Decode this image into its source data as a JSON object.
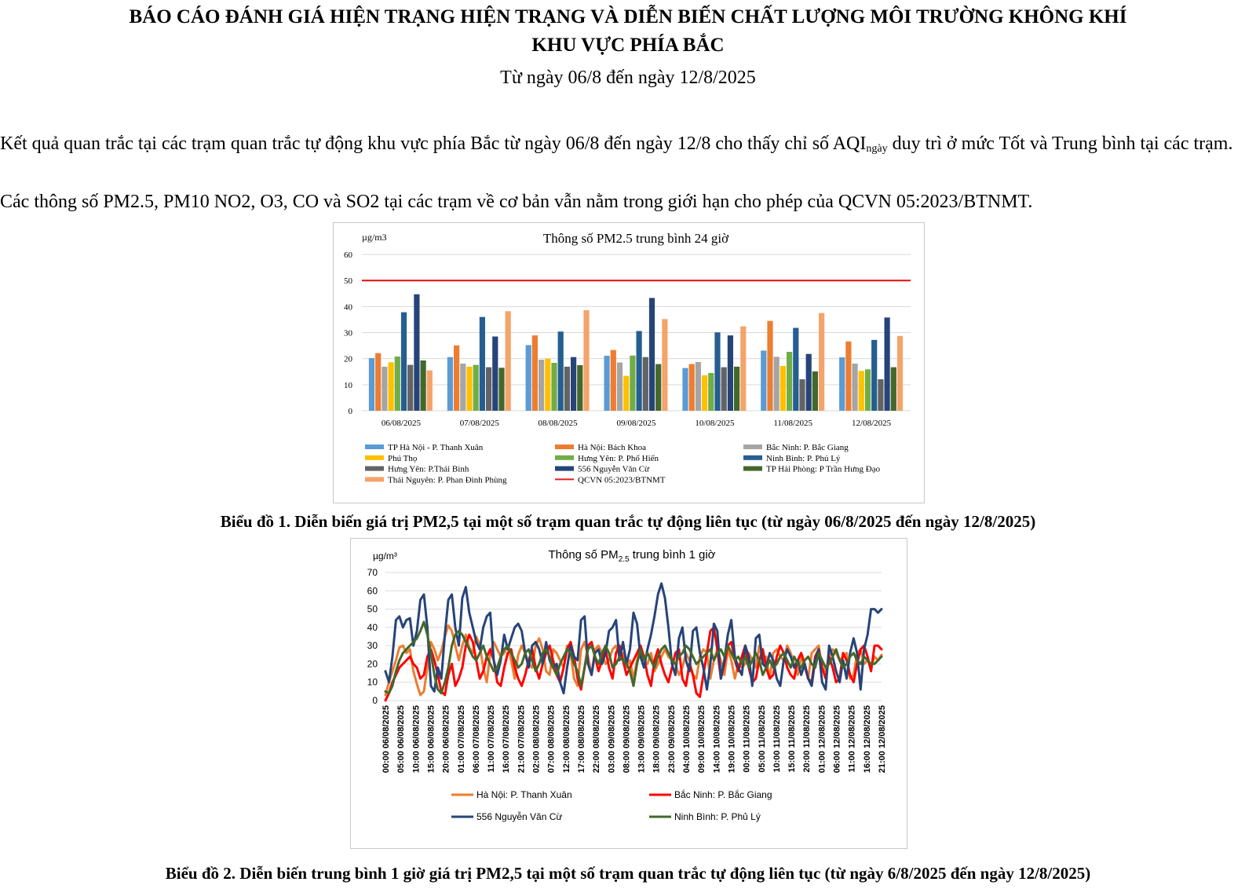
{
  "report": {
    "title_line1": "BÁO CÁO ĐÁNH GIÁ HIỆN TRẠNG HIỆN TRẠNG VÀ DIỄN BIẾN CHẤT LƯỢNG MÔI TRƯỜNG KHÔNG KHÍ",
    "title_line2": "KHU VỰC PHÍA BẮC",
    "date_range": "Từ ngày 06/8 đến ngày 12/8/2025",
    "para1_a": "Kết quả quan trắc tại các trạm quan trắc tự động khu vực phía Bắc từ ngày 06/8 đến ngày 12/8 cho thấy chỉ số AQI",
    "para1_sub": "ngày",
    "para1_b": " duy trì ở mức Tốt và Trung bình tại các trạm.",
    "para2": "Các thông số PM2.5, PM10  NO2, O3, CO và SO2 tại các trạm về cơ bản vẫn nằm trong giới hạn cho phép của QCVN 05:2023/BTNMT.",
    "caption1": "Biểu đồ 1. Diễn biến giá trị PM2,5 tại một số trạm quan trắc tự động liên tục (từ ngày 06/8/2025 đến ngày 12/8/2025)",
    "caption2": "Biểu đồ 2. Diễn biến trung bình 1 giờ giá trị PM2,5 tại một số trạm quan trắc tự động liên tục (từ ngày 6/8/2025 đến ngày 12/8/2025)"
  },
  "chart_data": [
    {
      "type": "bar",
      "title": "Thông số PM2.5 trung bình 24 giờ",
      "ylabel": "µg/m3",
      "ylim": [
        0,
        60
      ],
      "yticks": [
        0,
        10,
        20,
        30,
        40,
        50,
        60
      ],
      "categories": [
        "06/08/2025",
        "07/08/2025",
        "08/08/2025",
        "09/08/2025",
        "10/08/2025",
        "11/08/2025",
        "12/08/2025"
      ],
      "series": [
        {
          "name": "TP Hà Nội - P. Thanh Xuân",
          "color": "#5b9bd5",
          "values": [
            20.2,
            20.6,
            25.2,
            21.1,
            16.4,
            23.1,
            20.5
          ]
        },
        {
          "name": "Hà Nội: Bách Khoa",
          "color": "#ed7d31",
          "values": [
            22.1,
            25.1,
            28.9,
            23.3,
            17.9,
            34.5,
            26.6
          ]
        },
        {
          "name": "Bắc Ninh: P. Bắc Giang",
          "color": "#a5a5a5",
          "values": [
            16.9,
            18.1,
            19.6,
            18.5,
            18.7,
            20.7,
            18.1
          ]
        },
        {
          "name": "Phú Thọ",
          "color": "#ffc000",
          "values": [
            18.6,
            16.9,
            20.0,
            13.4,
            13.6,
            17.2,
            15.3
          ]
        },
        {
          "name": "Hưng Yên: P. Phố Hiến",
          "color": "#70ad47",
          "values": [
            20.8,
            17.6,
            18.4,
            21.2,
            14.5,
            22.6,
            15.9
          ]
        },
        {
          "name": "Ninh Bình: P. Phủ Lý",
          "color": "#255e91",
          "values": [
            37.8,
            36.0,
            30.4,
            30.6,
            30.1,
            31.8,
            27.2
          ]
        },
        {
          "name": "Hưng Yên: P.Thái Bình",
          "color": "#636363",
          "values": [
            17.6,
            16.7,
            16.9,
            20.6,
            16.7,
            12.1,
            12.1
          ]
        },
        {
          "name": "556 Nguyễn Văn Cừ",
          "color": "#264478",
          "values": [
            44.7,
            28.5,
            20.6,
            43.3,
            28.9,
            21.8,
            35.8
          ]
        },
        {
          "name": "TP Hải Phòng: P Trần Hưng Đạo",
          "color": "#43682b",
          "values": [
            19.3,
            16.5,
            17.5,
            17.9,
            16.9,
            15.1,
            16.7
          ]
        },
        {
          "name": "Thái Nguyên: P. Phan Đình Phùng",
          "color": "#f4a46a",
          "values": [
            15.5,
            38.2,
            38.6,
            35.2,
            32.4,
            37.5,
            28.7
          ]
        }
      ],
      "reference_line": {
        "name": "QCVN 05:2023/BTNMT",
        "value": 50,
        "color": "#e31a1c"
      }
    },
    {
      "type": "line",
      "title_prefix": "Thông số PM",
      "title_sub": "2.5",
      "title_suffix": " trung bình 1 giờ",
      "ylabel": "µg/m³",
      "ylim": [
        0,
        70
      ],
      "yticks": [
        0,
        10,
        20,
        30,
        40,
        50,
        60,
        70
      ],
      "x_tick_labels": [
        "00:00 06/08/2025",
        "05:00 06/08/2025",
        "10:00 06/08/2025",
        "15:00 06/08/2025",
        "20:00 06/08/2025",
        "01:00 07/08/2025",
        "06:00 07/08/2025",
        "11:00 07/08/2025",
        "16:00 07/08/2025",
        "21:00 07/08/2025",
        "02:00 08/08/2025",
        "07:00 08/08/2025",
        "12:00 08/08/2025",
        "17:00 08/08/2025",
        "22:00 08/08/2025",
        "03:00 09/08/2025",
        "08:00 09/08/2025",
        "13:00 09/08/2025",
        "18:00 09/08/2025",
        "23:00 09/08/2025",
        "04:00 10/08/2025",
        "09:00 10/08/2025",
        "14:00 10/08/2025",
        "19:00 10/08/2025",
        "00:00 11/08/2025",
        "05:00 11/08/2025",
        "10:00 11/08/2025",
        "15:00 11/08/2025",
        "20:00 11/08/2025",
        "01:00 12/08/2025",
        "06:00 12/08/2025",
        "11:00 12/08/2025",
        "16:00 12/08/2025",
        "21:00 12/08/2025"
      ],
      "series": [
        {
          "name": "Hà Nội: P. Thanh Xuân",
          "color": "#ed7d31",
          "values": [
            3,
            10,
            16,
            22,
            29,
            30,
            26,
            28,
            16,
            9,
            3,
            5,
            18,
            32,
            28,
            22,
            27,
            35,
            41,
            38,
            30,
            22,
            30,
            36,
            29,
            26,
            35,
            30,
            18,
            10,
            26,
            32,
            28,
            24,
            26,
            30,
            22,
            12,
            25,
            30,
            26,
            20,
            18,
            30,
            34,
            28,
            16,
            14,
            28,
            26,
            22,
            18,
            30,
            26,
            12,
            8,
            28,
            32,
            24,
            14,
            28,
            30,
            26,
            20,
            22,
            28,
            30,
            24,
            26,
            18,
            22,
            12,
            22,
            30,
            22,
            20,
            26,
            16,
            20,
            24,
            28,
            24,
            22,
            20,
            14,
            18,
            26,
            22,
            14,
            12,
            24,
            28,
            26,
            12,
            22,
            28,
            22,
            14,
            28,
            22,
            12,
            20,
            18,
            20,
            26,
            22,
            18,
            30,
            20,
            24,
            12,
            26,
            28,
            24,
            22,
            30,
            26,
            20,
            14,
            24,
            18,
            12,
            26,
            28,
            30,
            18,
            16,
            24,
            28,
            26,
            22,
            24,
            26,
            12,
            14,
            26,
            28,
            20,
            22,
            18,
            24,
            22,
            25
          ]
        },
        {
          "name": "Bắc Ninh: P. Bắc Giang",
          "color": "#ff0000",
          "values": [
            0,
            4,
            10,
            14,
            18,
            20,
            22,
            24,
            20,
            18,
            12,
            14,
            24,
            28,
            22,
            14,
            5,
            3,
            14,
            20,
            8,
            12,
            18,
            30,
            36,
            32,
            22,
            12,
            16,
            24,
            28,
            22,
            10,
            8,
            18,
            26,
            28,
            18,
            12,
            8,
            14,
            22,
            28,
            18,
            12,
            20,
            26,
            30,
            22,
            14,
            10,
            18,
            28,
            32,
            24,
            12,
            6,
            18,
            30,
            32,
            24,
            16,
            22,
            28,
            18,
            12,
            26,
            30,
            22,
            14,
            18,
            22,
            26,
            30,
            24,
            14,
            8,
            22,
            28,
            20,
            14,
            10,
            18,
            26,
            28,
            12,
            8,
            20,
            14,
            4,
            2,
            14,
            26,
            38,
            40,
            28,
            12,
            20,
            30,
            32,
            22,
            16,
            24,
            30,
            18,
            10,
            12,
            22,
            28,
            18,
            12,
            14,
            24,
            30,
            26,
            18,
            14,
            12,
            22,
            26,
            20,
            12,
            10,
            24,
            28,
            18,
            12,
            24,
            18,
            10,
            12,
            26,
            22,
            14,
            10,
            20,
            28,
            30,
            24,
            16,
            30,
            30,
            28
          ]
        },
        {
          "name": "556 Nguyễn Văn Cừ",
          "color": "#264478",
          "values": [
            16,
            10,
            24,
            44,
            46,
            40,
            44,
            45,
            30,
            38,
            55,
            58,
            40,
            8,
            5,
            18,
            12,
            36,
            55,
            58,
            40,
            30,
            56,
            62,
            48,
            40,
            32,
            28,
            40,
            46,
            48,
            22,
            14,
            22,
            36,
            28,
            34,
            40,
            42,
            38,
            26,
            18,
            30,
            32,
            28,
            20,
            32,
            22,
            18,
            20,
            10,
            4,
            18,
            30,
            24,
            22,
            44,
            46,
            20,
            14,
            26,
            28,
            20,
            26,
            38,
            40,
            44,
            22,
            32,
            20,
            28,
            48,
            42,
            24,
            18,
            28,
            36,
            46,
            58,
            64,
            56,
            40,
            20,
            14,
            34,
            40,
            22,
            16,
            38,
            40,
            26,
            18,
            6,
            20,
            42,
            38,
            12,
            22,
            36,
            44,
            24,
            18,
            14,
            30,
            24,
            8,
            34,
            36,
            20,
            18,
            26,
            22,
            12,
            8,
            22,
            28,
            24,
            18,
            22,
            14,
            20,
            12,
            8,
            22,
            28,
            10,
            6,
            30,
            24,
            16,
            10,
            22,
            12,
            26,
            34,
            26,
            6,
            28,
            36,
            50,
            50,
            48,
            50
          ]
        },
        {
          "name": "Ninh Bình: P. Phủ Lý",
          "color": "#43682b",
          "values": [
            5,
            4,
            8,
            16,
            22,
            26,
            28,
            30,
            32,
            34,
            38,
            43,
            36,
            26,
            14,
            6,
            4,
            10,
            18,
            30,
            36,
            38,
            36,
            32,
            28,
            24,
            22,
            26,
            30,
            24,
            20,
            16,
            18,
            24,
            28,
            30,
            26,
            22,
            18,
            20,
            26,
            28,
            22,
            16,
            20,
            26,
            28,
            24,
            18,
            14,
            20,
            24,
            28,
            26,
            20,
            16,
            8,
            18,
            28,
            30,
            24,
            20,
            26,
            30,
            26,
            18,
            20,
            24,
            22,
            20,
            16,
            8,
            20,
            28,
            22,
            26,
            22,
            18,
            24,
            28,
            30,
            26,
            22,
            20,
            24,
            26,
            30,
            28,
            24,
            20,
            22,
            24,
            26,
            28,
            22,
            26,
            28,
            24,
            30,
            26,
            22,
            24,
            20,
            24,
            18,
            22,
            26,
            22,
            14,
            18,
            22,
            18,
            20,
            24,
            26,
            22,
            18,
            24,
            20,
            18,
            22,
            24,
            20,
            18,
            26,
            22,
            18,
            20,
            24,
            28,
            22,
            18,
            20,
            24,
            26,
            22,
            20,
            24,
            22,
            20,
            20,
            22,
            24
          ]
        }
      ]
    }
  ]
}
